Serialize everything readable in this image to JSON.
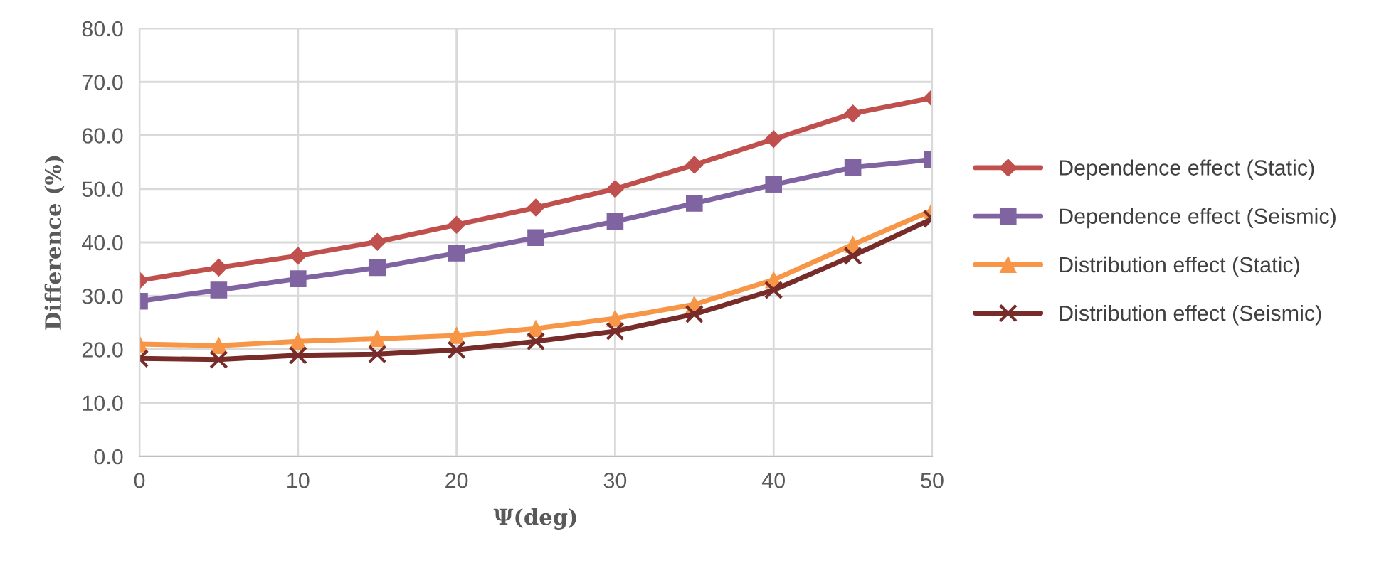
{
  "chart_data": {
    "type": "line",
    "xlabel": "Ψ(deg)",
    "ylabel": "Difference (%)",
    "x": [
      0,
      5,
      10,
      15,
      20,
      25,
      30,
      35,
      40,
      45,
      50
    ],
    "series": [
      {
        "name": "Dependence effect (Static)",
        "color": "#c0504d",
        "marker": "diamond",
        "values": [
          32.9,
          35.3,
          37.5,
          40.1,
          43.3,
          46.5,
          50.0,
          54.5,
          59.3,
          64.1,
          67.0
        ]
      },
      {
        "name": "Dependence effect (Seismic)",
        "color": "#8064a2",
        "marker": "square",
        "values": [
          29.0,
          31.1,
          33.2,
          35.3,
          38.0,
          40.9,
          43.9,
          47.3,
          50.8,
          54.0,
          55.5
        ]
      },
      {
        "name": "Distribution effect (Static)",
        "color": "#f79646",
        "marker": "triangle",
        "values": [
          21.0,
          20.7,
          21.5,
          22.0,
          22.6,
          23.9,
          25.8,
          28.4,
          33.0,
          39.6,
          46.0
        ]
      },
      {
        "name": "Distribution effect (Seismic)",
        "color": "#772c2a",
        "marker": "cross",
        "values": [
          18.3,
          18.1,
          18.9,
          19.1,
          19.9,
          21.5,
          23.4,
          26.6,
          31.1,
          37.5,
          44.4
        ]
      }
    ],
    "xlim": [
      0,
      50
    ],
    "xticks": [
      0,
      10,
      20,
      30,
      40,
      50
    ],
    "ylim": [
      0,
      80
    ],
    "yticks": [
      {
        "value": 0,
        "label": "0.0"
      },
      {
        "value": 10,
        "label": "10.0"
      },
      {
        "value": 20,
        "label": "20.0"
      },
      {
        "value": 30,
        "label": "30.0"
      },
      {
        "value": 40,
        "label": "40.0"
      },
      {
        "value": 50,
        "label": "50.0"
      },
      {
        "value": 60,
        "label": "60.0"
      },
      {
        "value": 70,
        "label": "70.0"
      },
      {
        "value": 80,
        "label": "80.0"
      }
    ],
    "grid": true,
    "legend": "right",
    "line_style": "solid"
  }
}
